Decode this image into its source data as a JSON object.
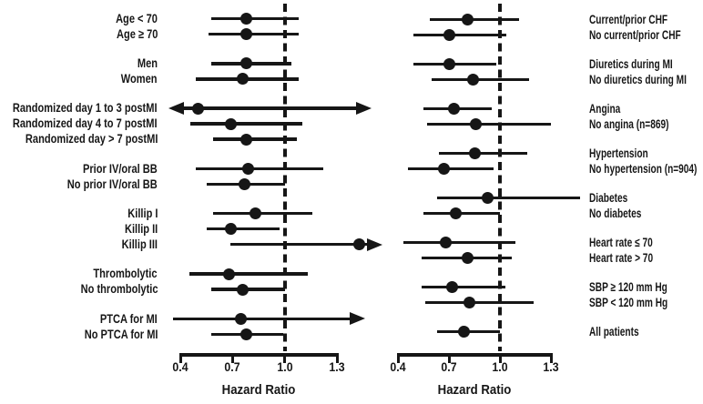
{
  "chart_data": {
    "type": "forest",
    "xlabel": "Hazard Ratio",
    "x_ticks": [
      0.4,
      0.7,
      1.0,
      1.3
    ],
    "x_tick_labels": [
      "0.4",
      "0.7",
      "1.0",
      "1.3"
    ],
    "reference_line": 1.0,
    "axis_range": [
      0.4,
      1.3
    ],
    "ink_color": "#161616",
    "background": "#ffffff",
    "panels": [
      {
        "id": "left",
        "label_side": "left",
        "groups": [
          {
            "rows": [
              {
                "label": "Age < 70",
                "lo": 0.58,
                "pt": 0.78,
                "hi": 1.08
              },
              {
                "label": "Age ≥ 70",
                "lo": 0.56,
                "pt": 0.78,
                "hi": 1.08
              }
            ]
          },
          {
            "rows": [
              {
                "label": "Men",
                "lo": 0.58,
                "pt": 0.78,
                "hi": 1.04
              },
              {
                "label": "Women",
                "lo": 0.49,
                "pt": 0.76,
                "hi": 1.08
              }
            ]
          },
          {
            "rows": [
              {
                "label": "Randomized day 1 to 3 postMI",
                "lo": 0.33,
                "pt": 0.5,
                "hi": 1.5,
                "arrow_lo": true,
                "arrow_hi": true
              },
              {
                "label": "Randomized day 4 to 7 postMI",
                "lo": 0.46,
                "pt": 0.69,
                "hi": 1.1
              },
              {
                "label": "Randomized day > 7 postMI",
                "lo": 0.59,
                "pt": 0.78,
                "hi": 1.07
              }
            ]
          },
          {
            "rows": [
              {
                "label": "Prior IV/oral BB",
                "lo": 0.49,
                "pt": 0.79,
                "hi": 1.22
              },
              {
                "label": "No prior IV/oral BB",
                "lo": 0.55,
                "pt": 0.77,
                "hi": 1.0
              }
            ]
          },
          {
            "rows": [
              {
                "label": "Killip I",
                "lo": 0.59,
                "pt": 0.83,
                "hi": 1.16
              },
              {
                "label": "Killip II",
                "lo": 0.55,
                "pt": 0.69,
                "hi": 0.97
              },
              {
                "label": "Killip III",
                "lo": 0.69,
                "pt": 1.43,
                "hi": 1.56,
                "arrow_hi": true
              }
            ]
          },
          {
            "rows": [
              {
                "label": "Thrombolytic",
                "lo": 0.45,
                "pt": 0.68,
                "hi": 1.13
              },
              {
                "label": "No thrombolytic",
                "lo": 0.58,
                "pt": 0.76,
                "hi": 1.0
              }
            ]
          },
          {
            "rows": [
              {
                "label": "PTCA for MI",
                "lo": 0.36,
                "pt": 0.75,
                "hi": 1.46,
                "arrow_hi": true
              },
              {
                "label": "No PTCA for MI",
                "lo": 0.58,
                "pt": 0.78,
                "hi": 0.99
              }
            ]
          }
        ]
      },
      {
        "id": "right",
        "label_side": "right",
        "groups": [
          {
            "rows": [
              {
                "label": "Current/prior CHF",
                "lo": 0.59,
                "pt": 0.81,
                "hi": 1.11
              },
              {
                "label": "No current/prior CHF",
                "lo": 0.49,
                "pt": 0.7,
                "hi": 1.04
              }
            ]
          },
          {
            "rows": [
              {
                "label": "Diuretics during MI",
                "lo": 0.49,
                "pt": 0.7,
                "hi": 0.98
              },
              {
                "label": "No diuretics during MI",
                "lo": 0.6,
                "pt": 0.84,
                "hi": 1.17
              }
            ]
          },
          {
            "rows": [
              {
                "label": "Angina",
                "lo": 0.55,
                "pt": 0.73,
                "hi": 0.95
              },
              {
                "label": "No angina (n=869)",
                "lo": 0.57,
                "pt": 0.86,
                "hi": 1.3
              }
            ]
          },
          {
            "rows": [
              {
                "label": "Hypertension",
                "lo": 0.64,
                "pt": 0.85,
                "hi": 1.16
              },
              {
                "label": "No hypertension (n=904)",
                "lo": 0.46,
                "pt": 0.67,
                "hi": 0.96
              }
            ]
          },
          {
            "rows": [
              {
                "label": "Diabetes",
                "lo": 0.63,
                "pt": 0.93,
                "hi": 1.47
              },
              {
                "label": "No diabetes",
                "lo": 0.55,
                "pt": 0.74,
                "hi": 1.0
              }
            ]
          },
          {
            "rows": [
              {
                "label": "Heart rate ≤ 70",
                "lo": 0.43,
                "pt": 0.68,
                "hi": 1.09
              },
              {
                "label": "Heart rate > 70",
                "lo": 0.54,
                "pt": 0.81,
                "hi": 1.07
              }
            ]
          },
          {
            "rows": [
              {
                "label": "SBP ≥ 120 mm Hg",
                "lo": 0.54,
                "pt": 0.72,
                "hi": 1.03
              },
              {
                "label": "SBP < 120 mm Hg",
                "lo": 0.56,
                "pt": 0.82,
                "hi": 1.2
              }
            ]
          },
          {
            "rows": [
              {
                "label": "All patients",
                "lo": 0.63,
                "pt": 0.79,
                "hi": 1.0
              }
            ]
          }
        ]
      }
    ]
  }
}
